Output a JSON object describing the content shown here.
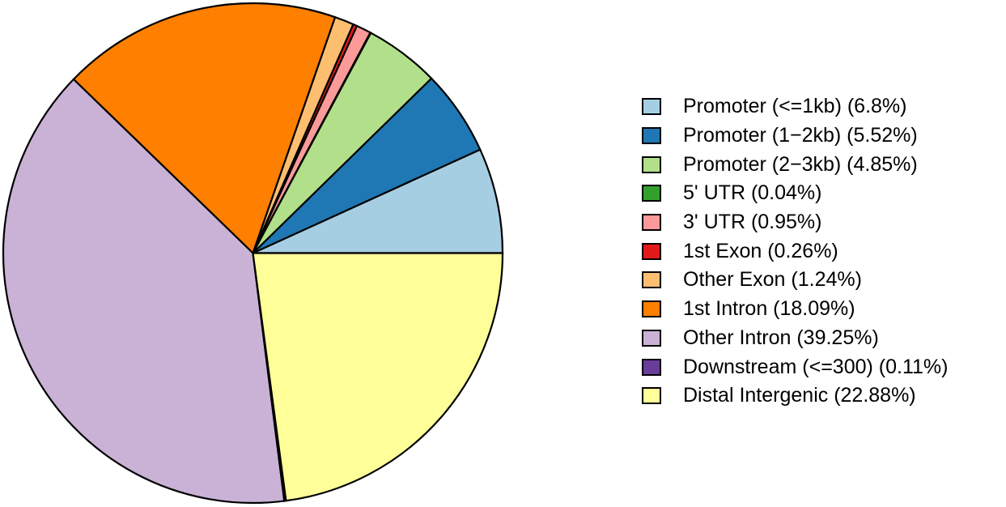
{
  "page": {
    "background_color": "#FFFFFF",
    "stroke_color": "#000000",
    "text_color": "#000000"
  },
  "chart_data": {
    "type": "pie",
    "title": "",
    "legend_position": "right",
    "start_angle_deg": 0,
    "direction": "counterclockwise",
    "stroke_color": "#000000",
    "slices": [
      {
        "name": "Promoter (<=1kb)",
        "percent": 6.8,
        "label": "Promoter (<=1kb) (6.8%)",
        "color": "#A6CEE3"
      },
      {
        "name": "Promoter (1−2kb)",
        "percent": 5.52,
        "label": "Promoter (1−2kb) (5.52%)",
        "color": "#1F78B4"
      },
      {
        "name": "Promoter (2−3kb)",
        "percent": 4.85,
        "label": "Promoter (2−3kb) (4.85%)",
        "color": "#B2DF8A"
      },
      {
        "name": "5' UTR",
        "percent": 0.04,
        "label": "5' UTR (0.04%)",
        "color": "#33A02C"
      },
      {
        "name": "3' UTR",
        "percent": 0.95,
        "label": "3' UTR (0.95%)",
        "color": "#FB9A99"
      },
      {
        "name": "1st Exon",
        "percent": 0.26,
        "label": "1st Exon (0.26%)",
        "color": "#E31A1C"
      },
      {
        "name": "Other Exon",
        "percent": 1.24,
        "label": "Other Exon (1.24%)",
        "color": "#FDBF6F"
      },
      {
        "name": "1st Intron",
        "percent": 18.09,
        "label": "1st Intron (18.09%)",
        "color": "#FF7F00"
      },
      {
        "name": "Other Intron",
        "percent": 39.25,
        "label": "Other Intron (39.25%)",
        "color": "#CAB2D6"
      },
      {
        "name": "Downstream (<=300)",
        "percent": 0.11,
        "label": "Downstream (<=300) (0.11%)",
        "color": "#6A3D9A"
      },
      {
        "name": "Distal Intergenic",
        "percent": 22.88,
        "label": "Distal Intergenic (22.88%)",
        "color": "#FFFF99"
      }
    ]
  }
}
